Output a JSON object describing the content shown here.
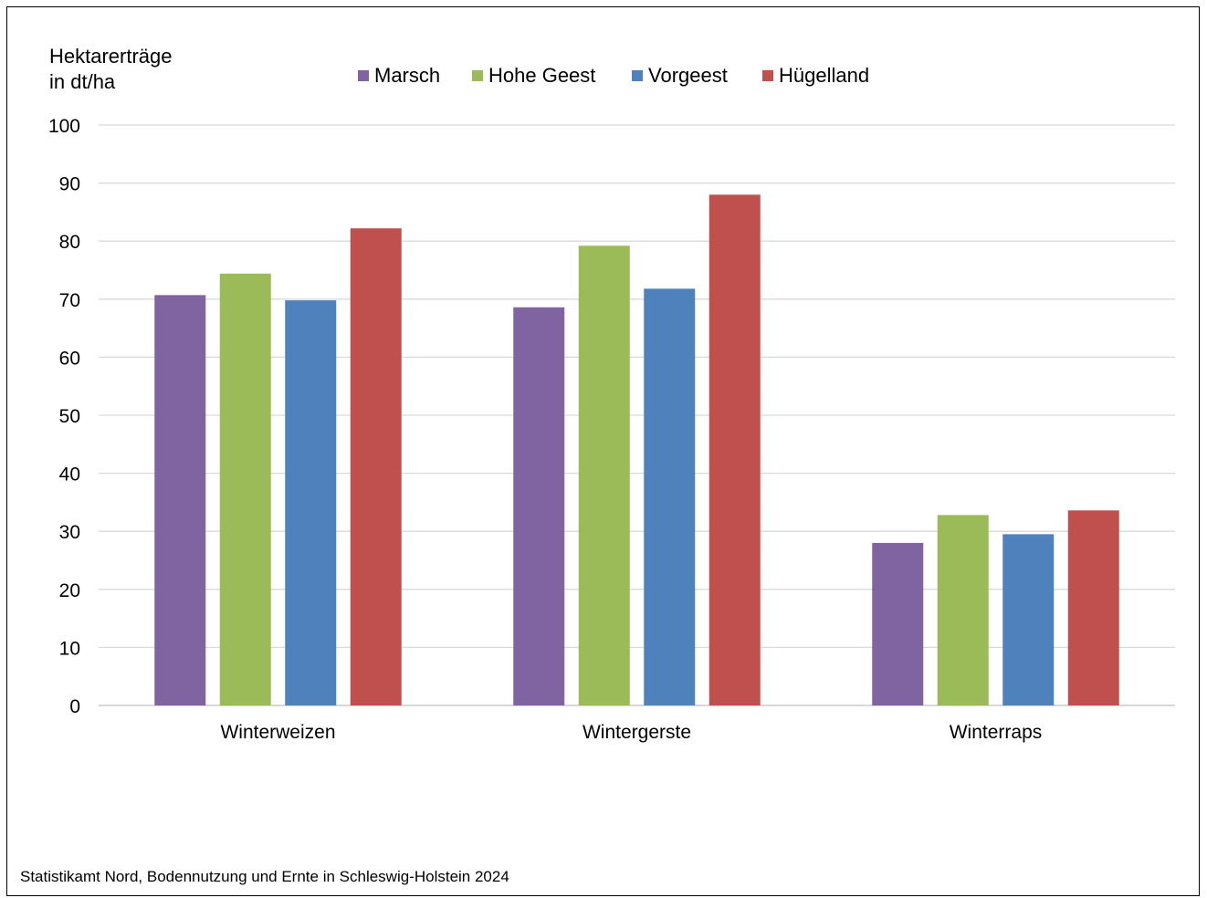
{
  "chart_data": {
    "type": "bar",
    "ylabel_lines": [
      "Hektarerträge",
      "in dt/ha"
    ],
    "categories": [
      "Winterweizen",
      "Wintergerste",
      "Winterraps"
    ],
    "series": [
      {
        "name": "Marsch",
        "color": "#8064A2",
        "values": [
          70.7,
          68.6,
          28.0
        ]
      },
      {
        "name": "Hohe Geest",
        "color": "#9BBB59",
        "values": [
          74.4,
          79.2,
          32.8
        ]
      },
      {
        "name": "Vorgeest",
        "color": "#4F81BD",
        "values": [
          69.8,
          71.8,
          29.5
        ]
      },
      {
        "name": "Hügelland",
        "color": "#C0504D",
        "values": [
          82.2,
          88.0,
          33.6
        ]
      }
    ],
    "ylim": [
      0,
      100
    ],
    "yticks": [
      0,
      10,
      20,
      30,
      40,
      50,
      60,
      70,
      80,
      90,
      100
    ],
    "grid": true,
    "legend_position": "top"
  },
  "source": "Statistikamt Nord, Bodennutzung und Ernte in Schleswig-Holstein 2024"
}
